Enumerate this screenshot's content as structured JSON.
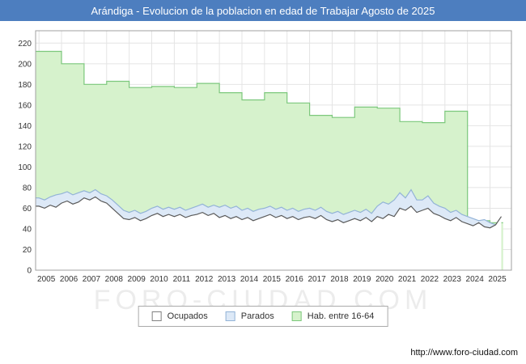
{
  "title_bar": {
    "title": "Arándiga - Evolucion de la poblacion en edad de Trabajar Agosto de 2025",
    "bg": "#4d7ebf"
  },
  "watermark": "FORO-CIUDAD.COM",
  "footer": {
    "url": "http://www.foro-ciudad.com"
  },
  "legend": {
    "items": [
      {
        "label": "Ocupados",
        "fill": "#ffffff",
        "stroke": "#808080"
      },
      {
        "label": "Parados",
        "fill": "#dde9f7",
        "stroke": "#93b3d7"
      },
      {
        "label": "Hab. entre 16-64",
        "fill": "#d6f2cc",
        "stroke": "#7cc87c"
      }
    ]
  },
  "chart_data": {
    "type": "area",
    "title": "Arándiga - Evolucion de la poblacion en edad de Trabajar Agosto de 2025",
    "xlabel": "",
    "ylabel": "",
    "legend_position": "bottom",
    "grid": true,
    "x_ticks": [
      2005,
      2006,
      2007,
      2008,
      2009,
      2010,
      2011,
      2012,
      2013,
      2014,
      2015,
      2016,
      2017,
      2018,
      2019,
      2020,
      2021,
      2022,
      2023,
      2024,
      2025
    ],
    "y_ticks": [
      0,
      20,
      40,
      60,
      80,
      100,
      120,
      140,
      160,
      180,
      200,
      220
    ],
    "ylim": [
      0,
      232
    ],
    "x_end": 2025.58,
    "series": [
      {
        "name": "Hab. entre 16-64",
        "mode": "step",
        "fill": "#d6f2cc",
        "stroke": "#7cc87c",
        "x": [
          2005,
          2006,
          2007,
          2008,
          2009,
          2010,
          2011,
          2012,
          2013,
          2014,
          2015,
          2016,
          2017,
          2018,
          2019,
          2020,
          2021,
          2022,
          2023,
          2024,
          2025
        ],
        "values": [
          212,
          200,
          180,
          183,
          177,
          178,
          177,
          181,
          172,
          165,
          172,
          162,
          150,
          148,
          158,
          157,
          144,
          143,
          154,
          48,
          46
        ]
      },
      {
        "name": "Parados",
        "mode": "line",
        "fill": "#dde9f7",
        "stroke": "#93b3d7",
        "x_start": 2005,
        "x_step": 0.25,
        "values": [
          70,
          68,
          71,
          73,
          74,
          76,
          73,
          75,
          77,
          75,
          78,
          74,
          72,
          68,
          63,
          58,
          56,
          58,
          55,
          57,
          60,
          62,
          59,
          61,
          59,
          61,
          58,
          60,
          62,
          64,
          61,
          63,
          61,
          63,
          60,
          62,
          58,
          60,
          57,
          59,
          60,
          62,
          59,
          61,
          58,
          60,
          57,
          59,
          60,
          58,
          61,
          57,
          55,
          57,
          54,
          56,
          58,
          56,
          59,
          55,
          62,
          66,
          64,
          68,
          75,
          70,
          78,
          68,
          68,
          72,
          65,
          62,
          60,
          56,
          58,
          54,
          52,
          50,
          48,
          49,
          46,
          44,
          45
        ]
      },
      {
        "name": "Ocupados",
        "mode": "line",
        "fill": "#ffffff",
        "stroke": "#5a5a5a",
        "x_start": 2005,
        "x_step": 0.25,
        "values": [
          62,
          60,
          63,
          61,
          65,
          67,
          64,
          66,
          70,
          68,
          71,
          67,
          65,
          60,
          55,
          50,
          49,
          51,
          48,
          50,
          53,
          55,
          52,
          54,
          52,
          54,
          51,
          53,
          54,
          56,
          53,
          55,
          51,
          53,
          50,
          52,
          49,
          51,
          48,
          50,
          52,
          54,
          51,
          53,
          50,
          52,
          49,
          51,
          52,
          50,
          53,
          49,
          47,
          49,
          46,
          48,
          50,
          48,
          51,
          47,
          52,
          50,
          54,
          52,
          60,
          58,
          62,
          56,
          58,
          60,
          55,
          53,
          50,
          48,
          51,
          47,
          45,
          43,
          46,
          42,
          41,
          44,
          52
        ]
      }
    ]
  }
}
